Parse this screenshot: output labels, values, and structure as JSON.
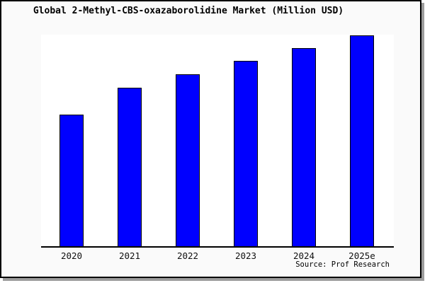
{
  "chart_data": {
    "type": "bar",
    "title": "Global 2-Methyl-CBS-oxazaborolidine Market (Million USD)",
    "categories": [
      "2020",
      "2021",
      "2022",
      "2023",
      "2024",
      "2025e"
    ],
    "values": [
      62.2,
      74.9,
      81.4,
      87.8,
      93.8,
      100
    ],
    "units": "relative units (y-axis unlabeled; values normalized to 2025e = 100)",
    "xlabel": "",
    "ylabel": "",
    "ylim": [
      0,
      100.2
    ],
    "grid": false,
    "legend": false,
    "bar_color": "#0000ff",
    "bar_edge_color": "#000000",
    "source_note": "Source: Prof Research"
  },
  "colors": {
    "canvas_bg": "#fafafa",
    "plot_bg": "#ffffff",
    "frame_border": "#000000",
    "shadow": "#9c9c9c",
    "bar_fill": "#0000ff",
    "text": "#000000"
  }
}
